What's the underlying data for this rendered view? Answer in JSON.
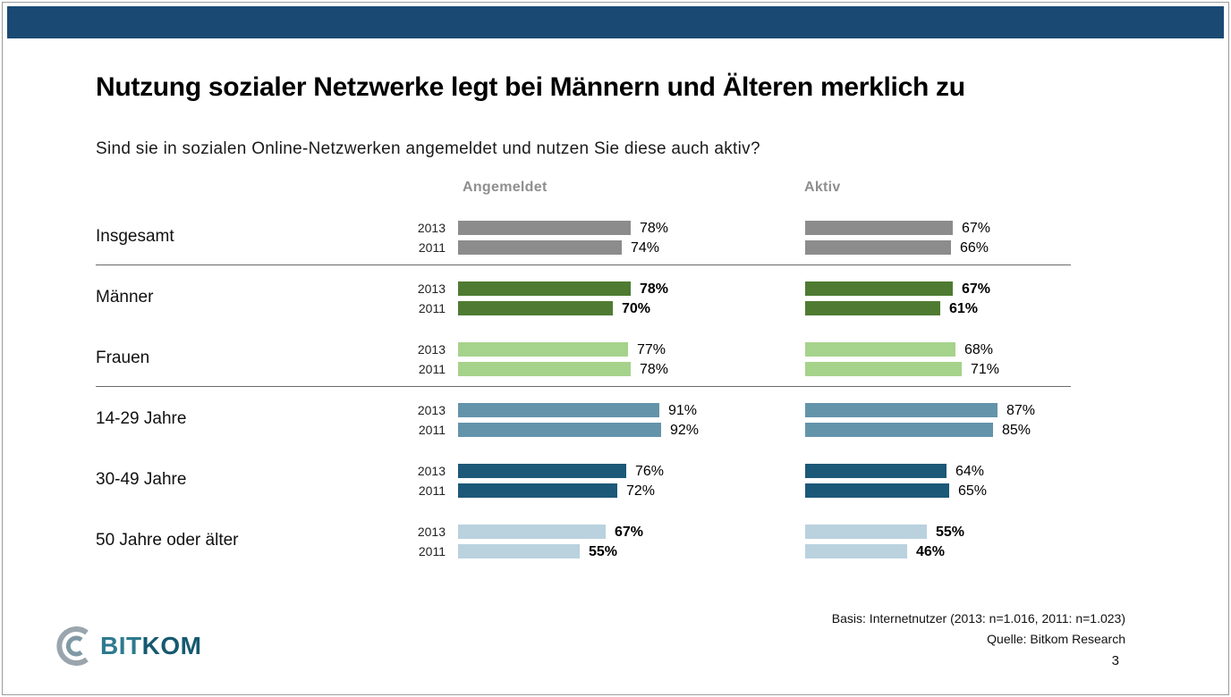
{
  "slide": {
    "title": "Nutzung sozialer Netzwerke legt bei Männern und Älteren merklich zu",
    "question": "Sind sie in sozialen Online-Netzwerken angemeldet und nutzen Sie diese auch aktiv?",
    "page_number": "3"
  },
  "footer": {
    "basis": "Basis: Internetnutzer (2013: n=1.016, 2011: n=1.023)",
    "source": "Quelle: Bitkom Research"
  },
  "logo": {
    "part1": "BIT",
    "part2": "KOM"
  },
  "colors": {
    "header_bar": "#1a4a73",
    "logo_teal": "#2d7a8e",
    "separator": "#6a6a6a",
    "column_header_gray": "#8f8f8f"
  },
  "chart_data": {
    "type": "bar",
    "orientation": "horizontal",
    "title": "Nutzung sozialer Netzwerke legt bei Männern und Älteren merklich zu",
    "columns": [
      "Angemeldet",
      "Aktiv"
    ],
    "years": [
      "2013",
      "2011"
    ],
    "unit": "%",
    "xlim": [
      0,
      100
    ],
    "legend_position": "none",
    "grid": false,
    "groups": [
      {
        "label": "Insgesamt",
        "color": "#8c8c8c",
        "bold_values": false,
        "separator_after": true,
        "values": {
          "Angemeldet": [
            78,
            74
          ],
          "Aktiv": [
            67,
            66
          ]
        }
      },
      {
        "label": "Männer",
        "color": "#4e7b31",
        "bold_values": true,
        "separator_after": false,
        "values": {
          "Angemeldet": [
            78,
            70
          ],
          "Aktiv": [
            67,
            61
          ]
        }
      },
      {
        "label": "Frauen",
        "color": "#a6d38b",
        "bold_values": false,
        "separator_after": true,
        "values": {
          "Angemeldet": [
            77,
            78
          ],
          "Aktiv": [
            68,
            71
          ]
        }
      },
      {
        "label": "14-29 Jahre",
        "color": "#6494aa",
        "bold_values": false,
        "separator_after": false,
        "values": {
          "Angemeldet": [
            91,
            92
          ],
          "Aktiv": [
            87,
            85
          ]
        }
      },
      {
        "label": "30-49 Jahre",
        "color": "#1c5878",
        "bold_values": false,
        "separator_after": false,
        "values": {
          "Angemeldet": [
            76,
            72
          ],
          "Aktiv": [
            64,
            65
          ]
        }
      },
      {
        "label": "50 Jahre oder älter",
        "color": "#b9d2de",
        "bold_values": true,
        "separator_after": false,
        "values": {
          "Angemeldet": [
            67,
            55
          ],
          "Aktiv": [
            55,
            46
          ]
        }
      }
    ]
  }
}
